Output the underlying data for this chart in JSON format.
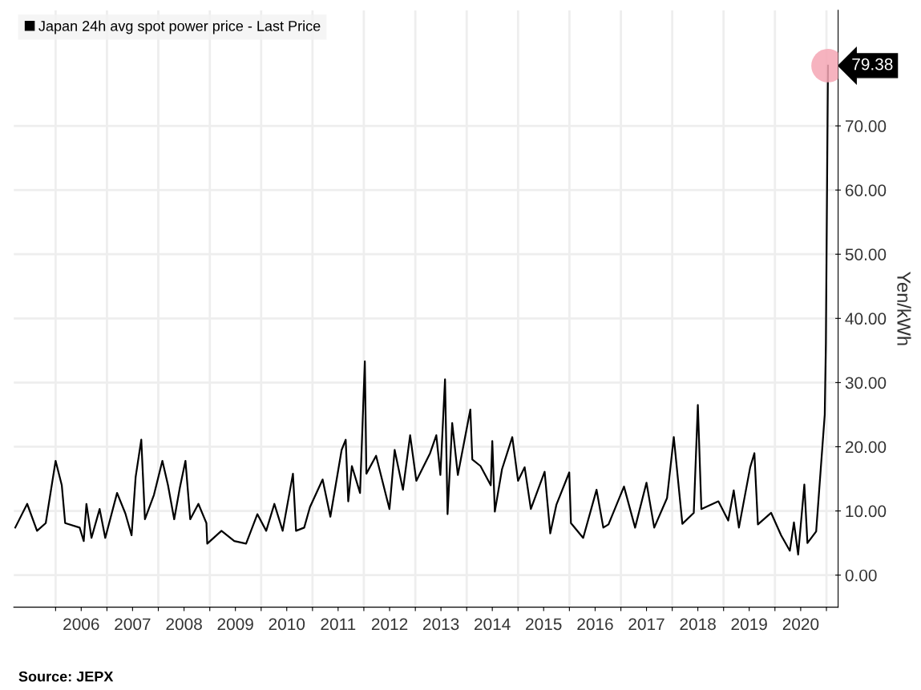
{
  "chart_data": {
    "type": "line",
    "ylabel": "Yen/kWh",
    "x": [
      "2005-03-20",
      "2005-06-13",
      "2005-08-22",
      "2005-10-23",
      "2006-01-01",
      "2006-02-14",
      "2006-03-10",
      "2006-06-21",
      "2006-07-20",
      "2006-08-08",
      "2006-09-13",
      "2006-11-10",
      "2006-12-20",
      "2007-03-14",
      "2007-05-12",
      "2007-06-25",
      "2007-07-24",
      "2007-09-02",
      "2007-09-28",
      "2007-12-01",
      "2008-01-30",
      "2008-03-10",
      "2008-04-23",
      "2008-06-02",
      "2008-07-12",
      "2008-08-15",
      "2008-10-12",
      "2008-12-08",
      "2008-12-14",
      "2009-03-25",
      "2009-06-24",
      "2009-09-16",
      "2009-12-05",
      "2010-02-06",
      "2010-04-05",
      "2010-06-03",
      "2010-08-15",
      "2010-09-06",
      "2010-11-03",
      "2010-12-14",
      "2011-03-14",
      "2011-05-08",
      "2011-07-27",
      "2011-08-25",
      "2011-09-12",
      "2011-10-08",
      "2011-12-05",
      "2012-01-08",
      "2012-01-19",
      "2012-03-28",
      "2012-07-01",
      "2012-08-07",
      "2012-10-05",
      "2012-11-25",
      "2013-01-08",
      "2013-04-16",
      "2013-05-30",
      "2013-06-28",
      "2013-07-31",
      "2013-08-18",
      "2013-09-20",
      "2013-10-30",
      "2014-01-27",
      "2014-02-10",
      "2014-04-09",
      "2014-06-21",
      "2014-07-02",
      "2014-07-20",
      "2014-09-09",
      "2014-11-21",
      "2015-01-01",
      "2015-02-17",
      "2015-04-02",
      "2015-07-09",
      "2015-08-18",
      "2015-10-01",
      "2015-12-31",
      "2016-01-12",
      "2016-04-08",
      "2016-07-12",
      "2016-08-29",
      "2016-10-05",
      "2017-01-23",
      "2017-04-12",
      "2017-07-02",
      "2017-08-26",
      "2017-11-25",
      "2018-01-12",
      "2018-03-14",
      "2018-06-03",
      "2018-07-02",
      "2018-07-27",
      "2018-11-25",
      "2019-02-03",
      "2019-03-14",
      "2019-04-20",
      "2019-07-09",
      "2019-08-08",
      "2019-09-02",
      "2019-12-05",
      "2020-02-14",
      "2020-04-16",
      "2020-05-15",
      "2020-06-14",
      "2020-07-28",
      "2020-08-19",
      "2020-10-20",
      "2020-12-20",
      "2020-12-28",
      "2021-01-12"
    ],
    "series": [
      {
        "name": "Japan 24h avg spot power price - Last Price",
        "color": "#000000",
        "values": [
          7.4,
          11.1,
          6.9,
          8.1,
          17.8,
          14,
          8.1,
          7.4,
          5.3,
          11.1,
          5.8,
          10.3,
          5.8,
          12.8,
          9.6,
          6.2,
          15.3,
          21.1,
          8.7,
          12.5,
          17.8,
          14,
          8.7,
          13.6,
          17.8,
          8.7,
          11.1,
          8.1,
          4.9,
          6.9,
          5.3,
          4.9,
          9.5,
          6.9,
          11.1,
          6.9,
          15.8,
          6.9,
          7.4,
          10.6,
          14.9,
          9.1,
          19.5,
          21.1,
          11.5,
          17,
          12.8,
          33.3,
          15.8,
          18.6,
          10.3,
          19.5,
          13.3,
          21.8,
          14.7,
          19,
          21.8,
          15.6,
          30.5,
          9.5,
          23.7,
          15.6,
          25.8,
          18,
          17,
          14,
          20.9,
          9.9,
          16.5,
          21.5,
          14.7,
          16.8,
          10.3,
          16.1,
          6.5,
          11,
          16,
          8.1,
          5.8,
          13.3,
          7.4,
          7.9,
          13.8,
          7.4,
          14.4,
          7.4,
          12,
          21.5,
          8,
          9.7,
          26.5,
          10.3,
          11.5,
          8.5,
          13.2,
          7.4,
          16.8,
          19,
          7.9,
          9.7,
          6.2,
          3.8,
          8.2,
          3.2,
          14.1,
          5,
          6.8,
          25,
          36,
          79.38
        ]
      }
    ],
    "xlim": [
      "2005-03-10",
      "2021-03-25"
    ],
    "xticks": [
      {
        "value": "2006-01-01",
        "label": null
      },
      {
        "value": "2006-07-02",
        "label": "2006"
      },
      {
        "value": "2007-01-01",
        "label": null
      },
      {
        "value": "2007-07-02",
        "label": "2007"
      },
      {
        "value": "2008-01-01",
        "label": null
      },
      {
        "value": "2008-07-02",
        "label": "2008"
      },
      {
        "value": "2009-01-01",
        "label": null
      },
      {
        "value": "2009-07-02",
        "label": "2009"
      },
      {
        "value": "2010-01-01",
        "label": null
      },
      {
        "value": "2010-07-02",
        "label": "2010"
      },
      {
        "value": "2011-01-01",
        "label": null
      },
      {
        "value": "2011-07-02",
        "label": "2011"
      },
      {
        "value": "2012-01-01",
        "label": null
      },
      {
        "value": "2012-07-02",
        "label": "2012"
      },
      {
        "value": "2013-01-01",
        "label": null
      },
      {
        "value": "2013-07-02",
        "label": "2013"
      },
      {
        "value": "2014-01-01",
        "label": null
      },
      {
        "value": "2014-07-02",
        "label": "2014"
      },
      {
        "value": "2015-01-01",
        "label": null
      },
      {
        "value": "2015-07-02",
        "label": "2015"
      },
      {
        "value": "2016-01-01",
        "label": null
      },
      {
        "value": "2016-07-02",
        "label": "2016"
      },
      {
        "value": "2017-01-01",
        "label": null
      },
      {
        "value": "2017-07-02",
        "label": "2017"
      },
      {
        "value": "2018-01-01",
        "label": null
      },
      {
        "value": "2018-07-02",
        "label": "2018"
      },
      {
        "value": "2019-01-01",
        "label": null
      },
      {
        "value": "2019-07-02",
        "label": "2019"
      },
      {
        "value": "2020-01-01",
        "label": null
      },
      {
        "value": "2020-07-02",
        "label": "2020"
      },
      {
        "value": "2021-01-01",
        "label": null
      }
    ],
    "ylim": [
      -5,
      88
    ],
    "yticks": [
      {
        "value": 0,
        "label": "0.00"
      },
      {
        "value": 10,
        "label": "10.00"
      },
      {
        "value": 20,
        "label": "20.00"
      },
      {
        "value": 30,
        "label": "30.00"
      },
      {
        "value": 40,
        "label": "40.00"
      },
      {
        "value": 50,
        "label": "50.00"
      },
      {
        "value": 60,
        "label": "60.00"
      },
      {
        "value": 70,
        "label": "70.00"
      }
    ],
    "grid": true,
    "legend": "top left",
    "annotations": [
      {
        "text": "79.38",
        "x": "2021-01-12",
        "y": 79.38
      },
      "Source: JEPX"
    ]
  }
}
